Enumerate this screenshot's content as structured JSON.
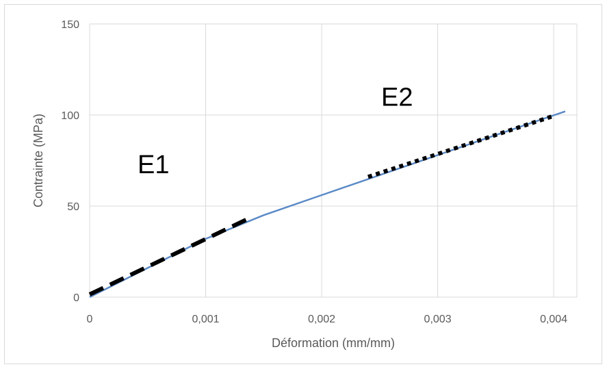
{
  "chart_data": {
    "type": "line",
    "title": "",
    "xlabel": "Déformation (mm/mm)",
    "ylabel": "Contrainte (MPa)",
    "xlim": [
      0,
      0.0042
    ],
    "ylim": [
      0,
      150
    ],
    "x_ticks": [
      0,
      0.001,
      0.002,
      0.003,
      0.004
    ],
    "x_tick_labels": [
      "0",
      "0,001",
      "0,002",
      "0,003",
      "0,004"
    ],
    "y_ticks": [
      0,
      50,
      100,
      150
    ],
    "y_tick_labels": [
      "0",
      "50",
      "100",
      "150"
    ],
    "grid": "vertical and horizontal",
    "legend": "none",
    "series": [
      {
        "color": "#5b8ac6",
        "style": "solid",
        "x": [
          0,
          0.0005,
          0.001,
          0.0015,
          0.002,
          0.0025,
          0.003,
          0.0035,
          0.0041
        ],
        "y": [
          0,
          16,
          32,
          45,
          56,
          67,
          78,
          89,
          102
        ]
      },
      {
        "color": "#000000",
        "style": "dashed",
        "x": [
          0,
          0.00135
        ],
        "y": [
          1.5,
          42.5
        ]
      },
      {
        "color": "#000000",
        "style": "dotted",
        "x": [
          0.0024,
          0.004
        ],
        "y": [
          66,
          99.5
        ]
      }
    ],
    "annotations": [
      {
        "text": "E1",
        "x": 0.00055,
        "y": 68
      },
      {
        "text": "E2",
        "x": 0.00265,
        "y": 105
      }
    ]
  }
}
